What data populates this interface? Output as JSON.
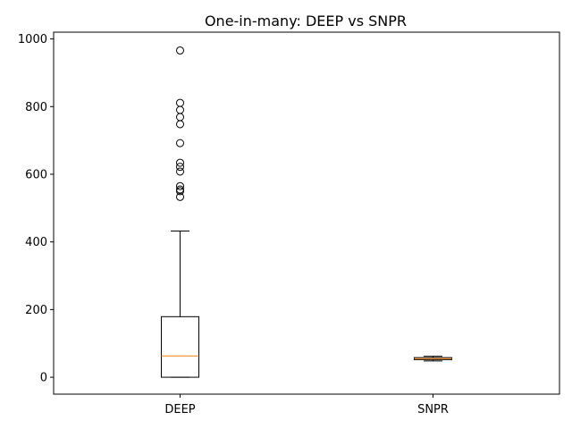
{
  "chart_data": {
    "type": "box",
    "title": "One-in-many: DEEP vs SNPR",
    "xlabel": "",
    "ylabel": "",
    "ylim": [
      -50,
      1020
    ],
    "yticks": [
      0,
      200,
      400,
      600,
      800,
      1000
    ],
    "grid": false,
    "categories": [
      "DEEP",
      "SNPR"
    ],
    "boxes": [
      {
        "name": "DEEP",
        "whisker_low": 0,
        "q1": 0,
        "median": 63,
        "q3": 179,
        "whisker_high": 432,
        "outliers": [
          533,
          550,
          555,
          565,
          608,
          622,
          634,
          692,
          748,
          769,
          790,
          811,
          966
        ]
      },
      {
        "name": "SNPR",
        "whisker_low": 48,
        "q1": 52,
        "median": 55,
        "q3": 58,
        "whisker_high": 62,
        "outliers": []
      }
    ],
    "colors": {
      "box": "#000000",
      "median": "#ff7f0e",
      "outlier": "#000000"
    }
  }
}
